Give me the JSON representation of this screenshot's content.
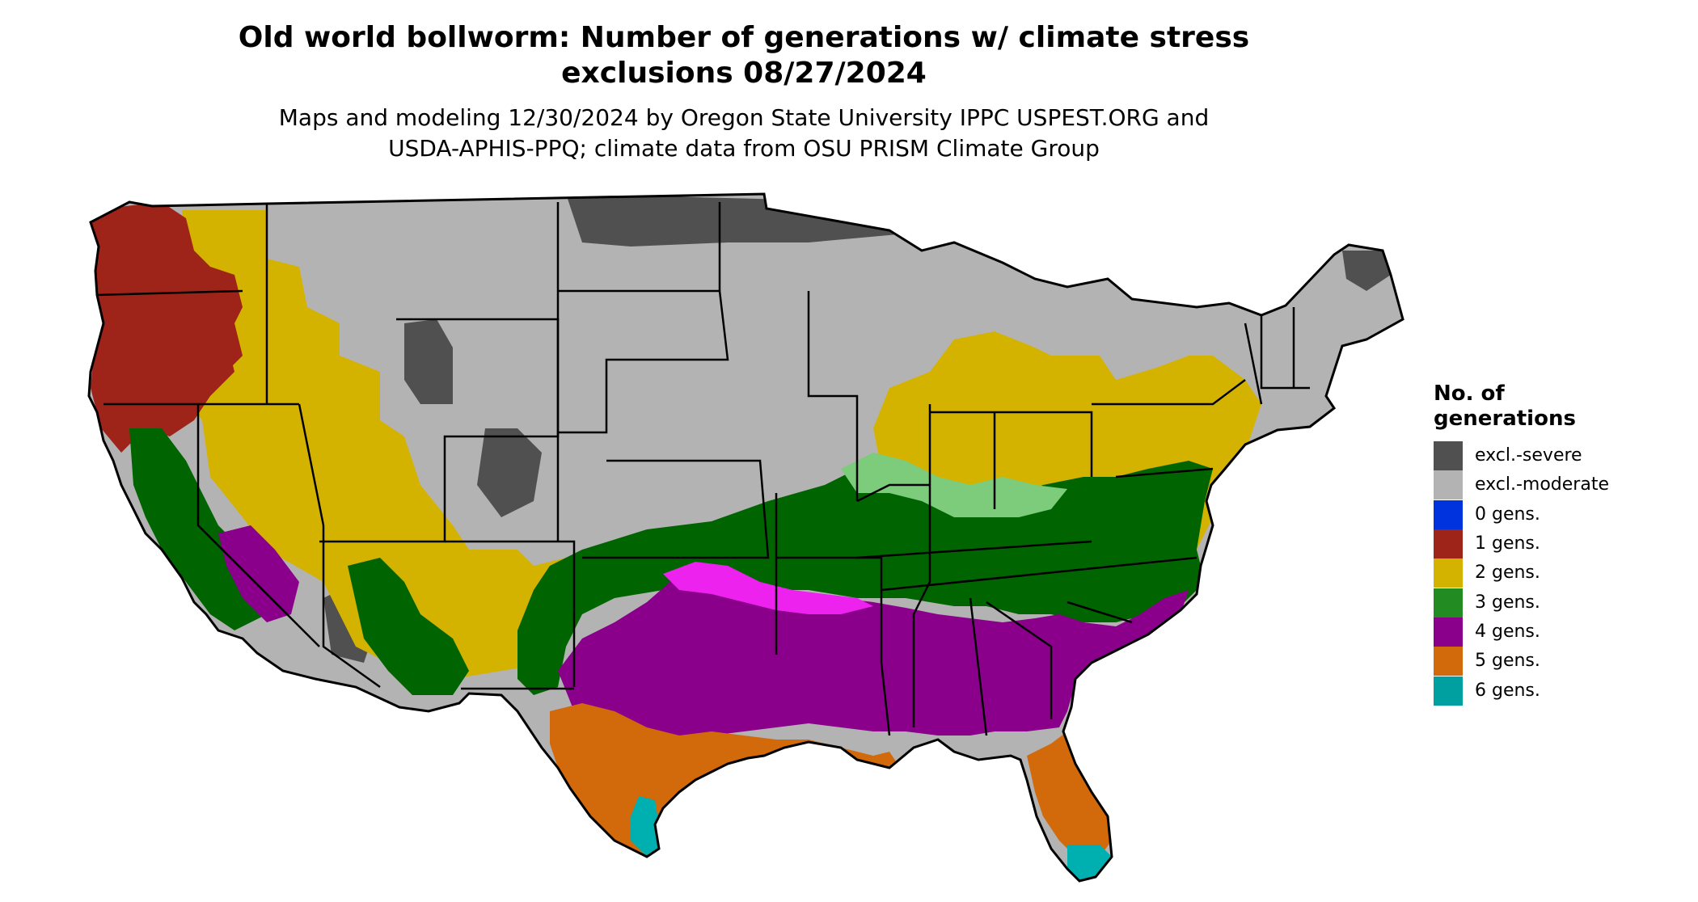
{
  "title": {
    "line1": "Old world bollworm: Number of generations w/ climate stress",
    "line2": "exclusions 08/27/2024"
  },
  "subtitle": {
    "line1": "Maps and modeling 12/30/2024 by Oregon State University IPPC USPEST.ORG and",
    "line2": "USDA-APHIS-PPQ; climate data from OSU PRISM Climate Group"
  },
  "legend": {
    "title_line1": "No. of",
    "title_line2": "generations",
    "items": [
      {
        "label": "excl.-severe",
        "color": "#505050"
      },
      {
        "label": "excl.-moderate",
        "color": "#b3b3b3"
      },
      {
        "label": "0 gens.",
        "color": "#0033dd"
      },
      {
        "label": "1 gens.",
        "color": "#9e2318"
      },
      {
        "label": "2 gens.",
        "color": "#d4b300"
      },
      {
        "label": "3 gens.",
        "color": "#228b22"
      },
      {
        "label": "4 gens.",
        "color": "#8b008b"
      },
      {
        "label": "5 gens.",
        "color": "#d2690a"
      },
      {
        "label": "6 gens.",
        "color": "#00a0a0"
      }
    ]
  },
  "map_colors": {
    "border": "#000000",
    "severe": "#505050",
    "moderate": "#b3b3b3",
    "gen1": "#9e2318",
    "gen2": "#d4b300",
    "gen3_dark": "#006400",
    "gen3_light": "#7ccc7c",
    "gen4": "#8b008b",
    "gen4_light": "#ee22ee",
    "gen5": "#d2690a",
    "gen5_light": "#ee9030",
    "gen6": "#00b0b0"
  }
}
